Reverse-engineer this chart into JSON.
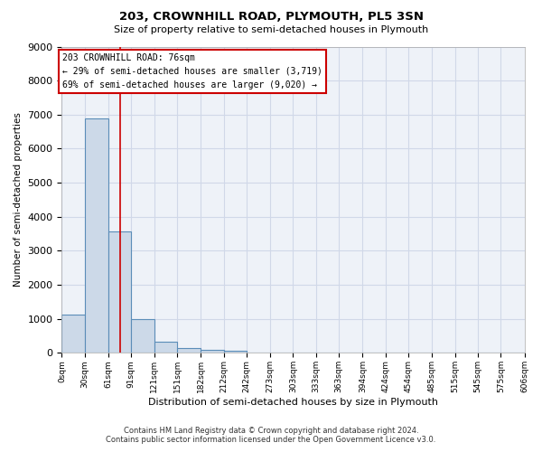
{
  "title": "203, CROWNHILL ROAD, PLYMOUTH, PL5 3SN",
  "subtitle": "Size of property relative to semi-detached houses in Plymouth",
  "xlabel": "Distribution of semi-detached houses by size in Plymouth",
  "ylabel": "Number of semi-detached properties",
  "bar_values": [
    1130,
    6900,
    3560,
    1000,
    320,
    155,
    100,
    75,
    0,
    0,
    0,
    0,
    0,
    0,
    0,
    0,
    0,
    0,
    0,
    0
  ],
  "bar_color": "#ccd9e8",
  "bar_edge_color": "#5b8db8",
  "bar_edge_width": 0.8,
  "x_labels": [
    "0sqm",
    "30sqm",
    "61sqm",
    "91sqm",
    "121sqm",
    "151sqm",
    "182sqm",
    "212sqm",
    "242sqm",
    "273sqm",
    "303sqm",
    "333sqm",
    "363sqm",
    "394sqm",
    "424sqm",
    "454sqm",
    "485sqm",
    "515sqm",
    "545sqm",
    "575sqm",
    "606sqm"
  ],
  "bin_edges": [
    0,
    30,
    61,
    91,
    121,
    151,
    182,
    212,
    242,
    273,
    303,
    333,
    363,
    394,
    424,
    454,
    485,
    515,
    545,
    575,
    606
  ],
  "ylim": [
    0,
    9000
  ],
  "yticks": [
    0,
    1000,
    2000,
    3000,
    4000,
    5000,
    6000,
    7000,
    8000,
    9000
  ],
  "property_size": 76,
  "annotation_title": "203 CROWNHILL ROAD: 76sqm",
  "annotation_line1": "← 29% of semi-detached houses are smaller (3,719)",
  "annotation_line2": "69% of semi-detached houses are larger (9,020) →",
  "annotation_box_color": "#ffffff",
  "annotation_box_edge_color": "#cc0000",
  "property_line_color": "#cc0000",
  "grid_color": "#d0d8e8",
  "background_color": "#eef2f8",
  "footer_line1": "Contains HM Land Registry data © Crown copyright and database right 2024.",
  "footer_line2": "Contains public sector information licensed under the Open Government Licence v3.0.",
  "num_bins": 20
}
